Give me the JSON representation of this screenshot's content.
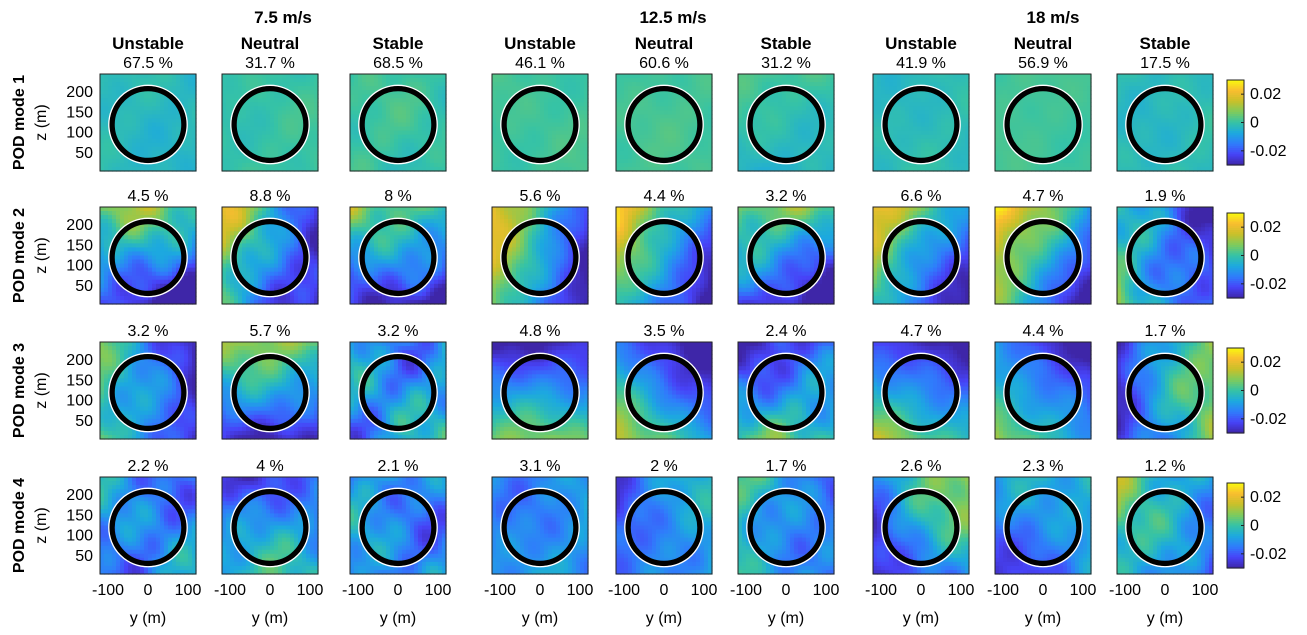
{
  "chart_data": {
    "type": "heatmap",
    "wind_speeds": [
      "7.5 m/s",
      "12.5 m/s",
      "18 m/s"
    ],
    "stability_conditions": [
      "Unstable",
      "Neutral",
      "Stable"
    ],
    "modes": [
      "POD mode 1",
      "POD mode 2",
      "POD mode 3",
      "POD mode 4"
    ],
    "energy_percent_labels": [
      [
        "67.5 %",
        "31.7 %",
        "68.5 %",
        "46.1 %",
        "60.6 %",
        "31.2 %",
        "41.9 %",
        "56.9 %",
        "17.5 %"
      ],
      [
        "4.5 %",
        "8.8 %",
        "8 %",
        "5.6 %",
        "4.4 %",
        "3.2 %",
        "6.6 %",
        "4.7 %",
        "1.9 %"
      ],
      [
        "3.2 %",
        "5.7 %",
        "3.2 %",
        "4.8 %",
        "3.5 %",
        "2.4 %",
        "4.7 %",
        "4.4 %",
        "1.7 %"
      ],
      [
        "2.2 %",
        "4 %",
        "2.1 %",
        "3.1 %",
        "2 %",
        "1.7 %",
        "2.6 %",
        "2.3 %",
        "1.2 %"
      ]
    ],
    "xlabel": "y (m)",
    "ylabel": "z (m)",
    "x_ticks": [
      -100,
      0,
      100
    ],
    "x_tick_labels": [
      "-100",
      "0",
      "100"
    ],
    "y_ticks": [
      50,
      100,
      150,
      200
    ],
    "y_tick_labels": [
      "50",
      "100",
      "150",
      "200"
    ],
    "xlim": [
      -120,
      120
    ],
    "ylim": [
      5,
      245
    ],
    "rotor": {
      "center_y": 0,
      "center_z": 120,
      "radius": 90
    },
    "colorbar": {
      "range": [
        -0.03,
        0.03
      ],
      "ticks": [
        0.02,
        0,
        -0.02
      ],
      "tick_labels": [
        "0.02",
        "0",
        "-0.02"
      ],
      "colormap": [
        "#3e26a8",
        "#4743f8",
        "#2f7dfb",
        "#1ca9df",
        "#36c3a5",
        "#7fcb5c",
        "#c9c029",
        "#f9bd30",
        "#f9fb0e"
      ]
    },
    "field_pattern": [
      [
        {
          "base": 0.45,
          "gx": 0.0,
          "gz": 0.0,
          "noise": 0.06
        },
        {
          "base": 0.5,
          "gx": 0.0,
          "gz": 0.0,
          "noise": 0.05
        },
        {
          "base": 0.5,
          "gx": 0.0,
          "gz": 0.0,
          "noise": 0.07
        },
        {
          "base": 0.52,
          "gx": 0.0,
          "gz": 0.0,
          "noise": 0.04
        },
        {
          "base": 0.52,
          "gx": 0.0,
          "gz": 0.0,
          "noise": 0.04
        },
        {
          "base": 0.48,
          "gx": 0.0,
          "gz": 0.05,
          "noise": 0.06
        },
        {
          "base": 0.46,
          "gx": 0.0,
          "gz": 0.0,
          "noise": 0.05
        },
        {
          "base": 0.52,
          "gx": 0.0,
          "gz": 0.0,
          "noise": 0.03
        },
        {
          "base": 0.46,
          "gx": 0.0,
          "gz": 0.0,
          "noise": 0.06
        }
      ],
      [
        {
          "base": 0.3,
          "gx": -0.1,
          "gz": 0.3,
          "noise": 0.22
        },
        {
          "base": 0.35,
          "gx": -0.3,
          "gz": 0.1,
          "noise": 0.2
        },
        {
          "base": 0.3,
          "gx": -0.1,
          "gz": 0.3,
          "noise": 0.2
        },
        {
          "base": 0.4,
          "gx": -0.35,
          "gz": 0.1,
          "noise": 0.12
        },
        {
          "base": 0.4,
          "gx": -0.35,
          "gz": 0.2,
          "noise": 0.12
        },
        {
          "base": 0.3,
          "gx": -0.1,
          "gz": 0.3,
          "noise": 0.18
        },
        {
          "base": 0.4,
          "gx": -0.3,
          "gz": 0.2,
          "noise": 0.14
        },
        {
          "base": 0.45,
          "gx": -0.35,
          "gz": 0.2,
          "noise": 0.12
        },
        {
          "base": 0.3,
          "gx": -0.2,
          "gz": -0.1,
          "noise": 0.22
        }
      ],
      [
        {
          "base": 0.3,
          "gx": -0.3,
          "gz": 0.0,
          "noise": 0.18
        },
        {
          "base": 0.35,
          "gx": 0.0,
          "gz": 0.3,
          "noise": 0.15
        },
        {
          "base": 0.35,
          "gx": 0.0,
          "gz": 0.0,
          "noise": 0.3
        },
        {
          "base": 0.3,
          "gx": 0.0,
          "gz": -0.3,
          "noise": 0.1
        },
        {
          "base": 0.3,
          "gx": -0.2,
          "gz": -0.25,
          "noise": 0.1
        },
        {
          "base": 0.3,
          "gx": 0.0,
          "gz": -0.2,
          "noise": 0.22
        },
        {
          "base": 0.3,
          "gx": -0.1,
          "gz": -0.3,
          "noise": 0.1
        },
        {
          "base": 0.3,
          "gx": -0.2,
          "gz": -0.2,
          "noise": 0.1
        },
        {
          "base": 0.35,
          "gx": 0.3,
          "gz": 0.0,
          "noise": 0.18
        }
      ],
      [
        {
          "base": 0.3,
          "gx": 0.0,
          "gz": 0.0,
          "noise": 0.25
        },
        {
          "base": 0.3,
          "gx": 0.0,
          "gz": -0.15,
          "noise": 0.2
        },
        {
          "base": 0.3,
          "gx": 0.0,
          "gz": 0.0,
          "noise": 0.25
        },
        {
          "base": 0.3,
          "gx": 0.0,
          "gz": 0.0,
          "noise": 0.15
        },
        {
          "base": 0.28,
          "gx": 0.15,
          "gz": 0.0,
          "noise": 0.15
        },
        {
          "base": 0.35,
          "gx": -0.15,
          "gz": 0.0,
          "noise": 0.2
        },
        {
          "base": 0.35,
          "gx": 0.2,
          "gz": 0.15,
          "noise": 0.18
        },
        {
          "base": 0.3,
          "gx": 0.1,
          "gz": 0.1,
          "noise": 0.15
        },
        {
          "base": 0.4,
          "gx": -0.2,
          "gz": 0.1,
          "noise": 0.2
        }
      ]
    ]
  }
}
